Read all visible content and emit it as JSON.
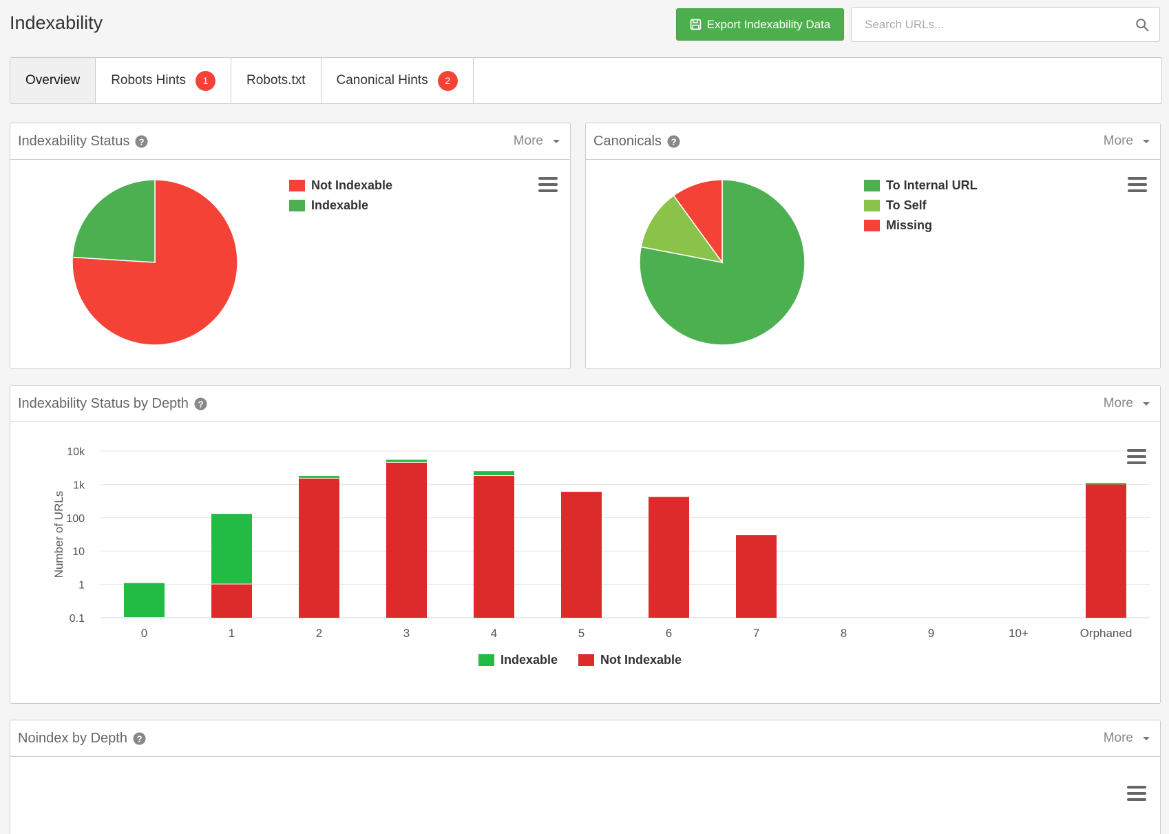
{
  "header": {
    "title": "Indexability",
    "export_label": "Export Indexability Data",
    "search_placeholder": "Search URLs..."
  },
  "tabs": [
    {
      "label": "Overview",
      "badge": ""
    },
    {
      "label": "Robots Hints",
      "badge": "1"
    },
    {
      "label": "Robots.txt",
      "badge": ""
    },
    {
      "label": "Canonical Hints",
      "badge": "2"
    }
  ],
  "panels": {
    "status": {
      "title": "Indexability Status",
      "more": "More"
    },
    "canonicals": {
      "title": "Canonicals",
      "more": "More"
    },
    "depth": {
      "title": "Indexability Status by Depth",
      "more": "More"
    },
    "noindex": {
      "title": "Noindex by Depth",
      "more": "More"
    }
  },
  "colors": {
    "red": "#f44336",
    "green": "#4caf50",
    "light_green": "#8bc34a",
    "bar_green": "#22bb44",
    "bar_red": "#dd2a2a"
  },
  "chart_data": [
    {
      "type": "pie",
      "legend_position": "top-right",
      "slices": [
        {
          "label": "Not Indexable",
          "value": 76,
          "color": "#f44336"
        },
        {
          "label": "Indexable",
          "value": 24,
          "color": "#4caf50"
        }
      ]
    },
    {
      "type": "pie",
      "legend_position": "top-right",
      "slices": [
        {
          "label": "To Internal URL",
          "value": 78,
          "color": "#4caf50"
        },
        {
          "label": "To Self",
          "value": 12,
          "color": "#8bc34a"
        },
        {
          "label": "Missing",
          "value": 10,
          "color": "#f44336"
        }
      ]
    },
    {
      "type": "bar",
      "stacked": true,
      "y_scale": "log",
      "ylabel": "Number of URLs",
      "ylim": [
        0.1,
        10000
      ],
      "yticks": [
        {
          "value": 10000,
          "label": "10k"
        },
        {
          "value": 1000,
          "label": "1k"
        },
        {
          "value": 100,
          "label": "100"
        },
        {
          "value": 10,
          "label": "10"
        },
        {
          "value": 1,
          "label": "1"
        },
        {
          "value": 0.1,
          "label": "0.1"
        }
      ],
      "grid": true,
      "legend_position": "bottom",
      "categories": [
        "0",
        "1",
        "2",
        "3",
        "4",
        "5",
        "6",
        "7",
        "8",
        "9",
        "10+",
        "Orphaned"
      ],
      "series": [
        {
          "name": "Not Indexable",
          "color": "#dd2a2a",
          "values": [
            0,
            1,
            1500,
            4500,
            1800,
            600,
            420,
            30,
            0,
            0,
            0,
            1000
          ]
        },
        {
          "name": "Indexable",
          "color": "#22bb44",
          "values": [
            1,
            130,
            300,
            1000,
            700,
            0,
            0,
            0,
            0,
            0,
            0,
            100
          ]
        }
      ],
      "legend": [
        "Indexable",
        "Not Indexable"
      ]
    }
  ]
}
